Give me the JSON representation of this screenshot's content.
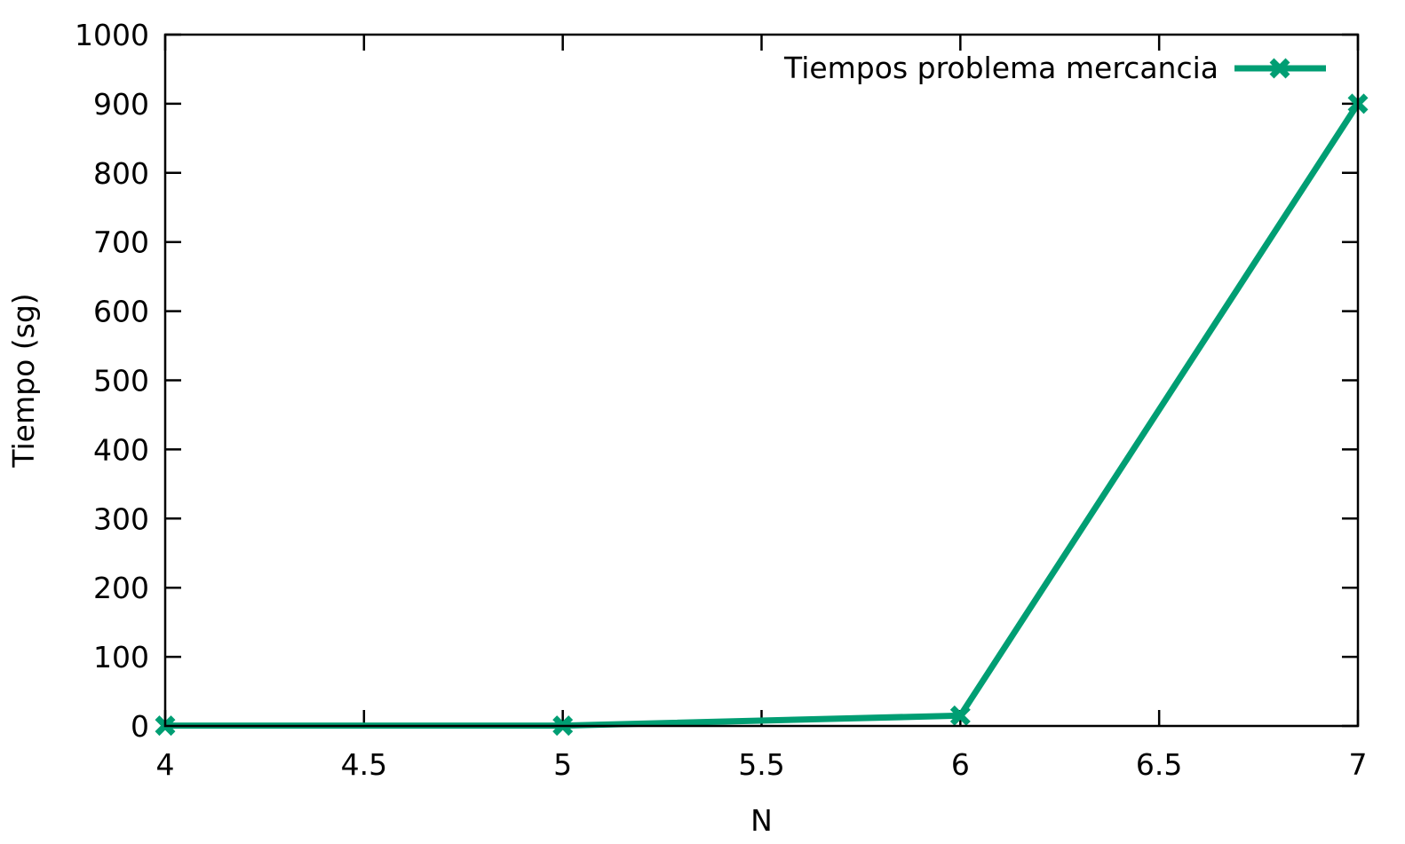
{
  "chart_data": {
    "type": "line",
    "title": "",
    "xlabel": "N",
    "ylabel": "Tiempo (sg)",
    "xlim": [
      4,
      7
    ],
    "ylim": [
      0,
      1000
    ],
    "xticks": [
      4,
      4.5,
      5,
      5.5,
      6,
      6.5,
      7
    ],
    "xtick_labels": [
      "4",
      "4.5",
      "5",
      "5.5",
      "6",
      "6.5",
      "7"
    ],
    "yticks": [
      0,
      100,
      200,
      300,
      400,
      500,
      600,
      700,
      800,
      900,
      1000
    ],
    "ytick_labels": [
      "0",
      "100",
      "200",
      "300",
      "400",
      "500",
      "600",
      "700",
      "800",
      "900",
      "1000"
    ],
    "grid": false,
    "legend_position": "top-right",
    "series": [
      {
        "name": "Tiempos problema mercancia",
        "color": "#009e73",
        "marker": "x",
        "x": [
          4,
          5,
          6,
          7
        ],
        "y": [
          0.5,
          0.5,
          15,
          900
        ]
      }
    ]
  }
}
